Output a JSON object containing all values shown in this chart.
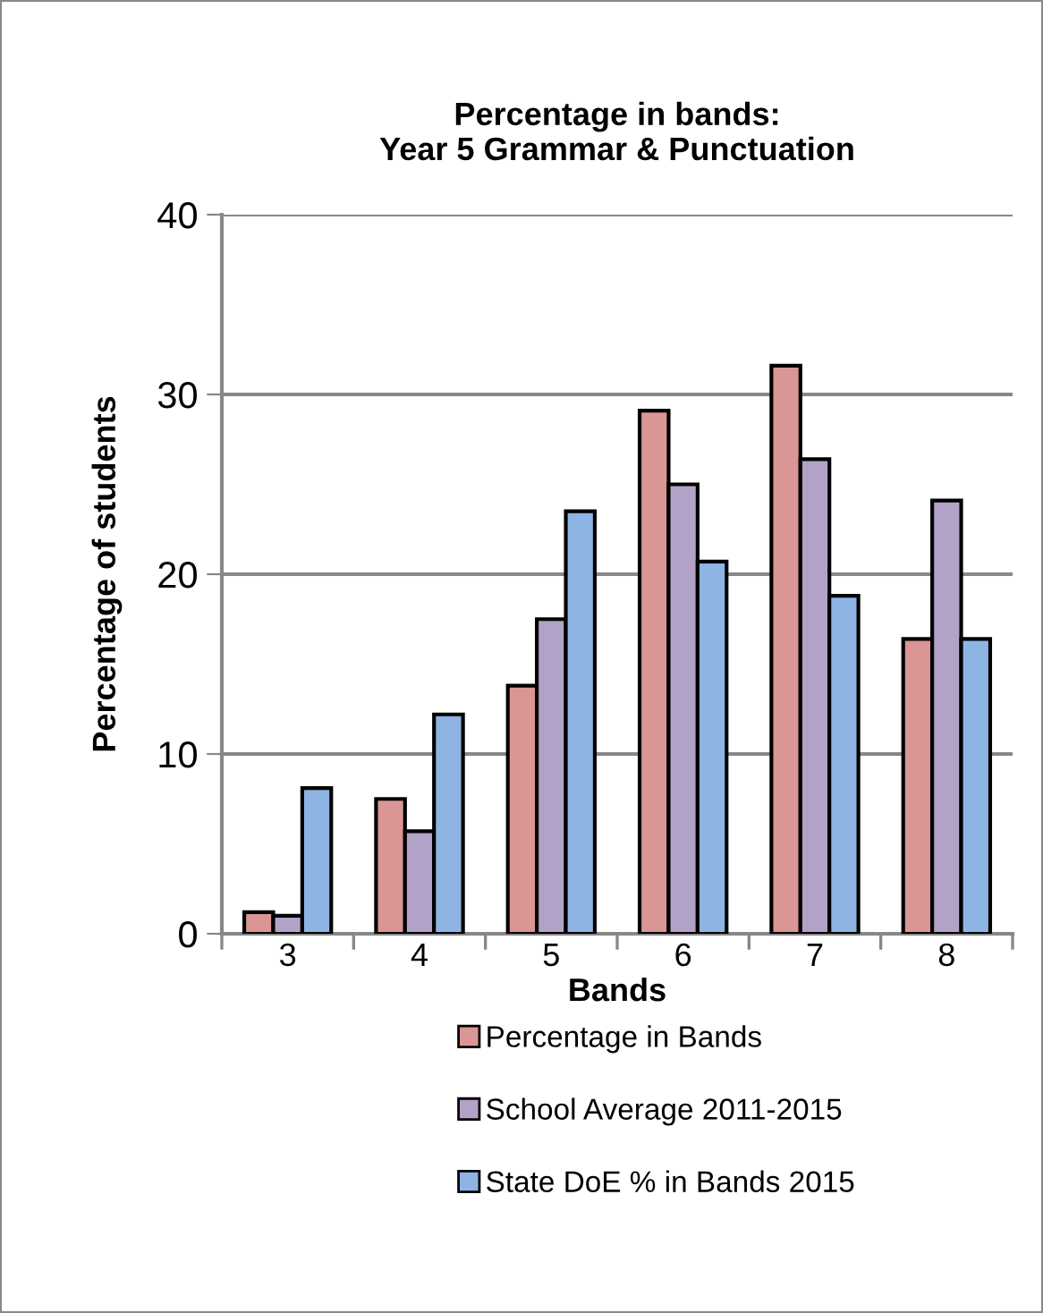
{
  "chart_data": {
    "type": "bar",
    "title": "Percentage in bands:\nYear 5 Grammar & Punctuation",
    "xlabel": "Bands",
    "ylabel": "Percentage of students",
    "categories": [
      "3",
      "4",
      "5",
      "6",
      "7",
      "8"
    ],
    "series": [
      {
        "name": "Percentage in Bands",
        "color": "#d99694",
        "values": [
          1.2,
          7.5,
          13.8,
          29.1,
          31.6,
          16.4
        ]
      },
      {
        "name": "School Average 2011-2015",
        "color": "#b3a2c7",
        "values": [
          1.0,
          5.7,
          17.5,
          25.0,
          26.4,
          24.1
        ]
      },
      {
        "name": "State DoE % in Bands 2015",
        "color": "#8eb4e3",
        "values": [
          8.1,
          12.2,
          23.5,
          20.7,
          18.8,
          16.4
        ]
      }
    ],
    "ylim": [
      0,
      40
    ],
    "yticks": [
      0,
      10,
      20,
      30,
      40
    ],
    "grid": "y",
    "legend": "bottom"
  }
}
